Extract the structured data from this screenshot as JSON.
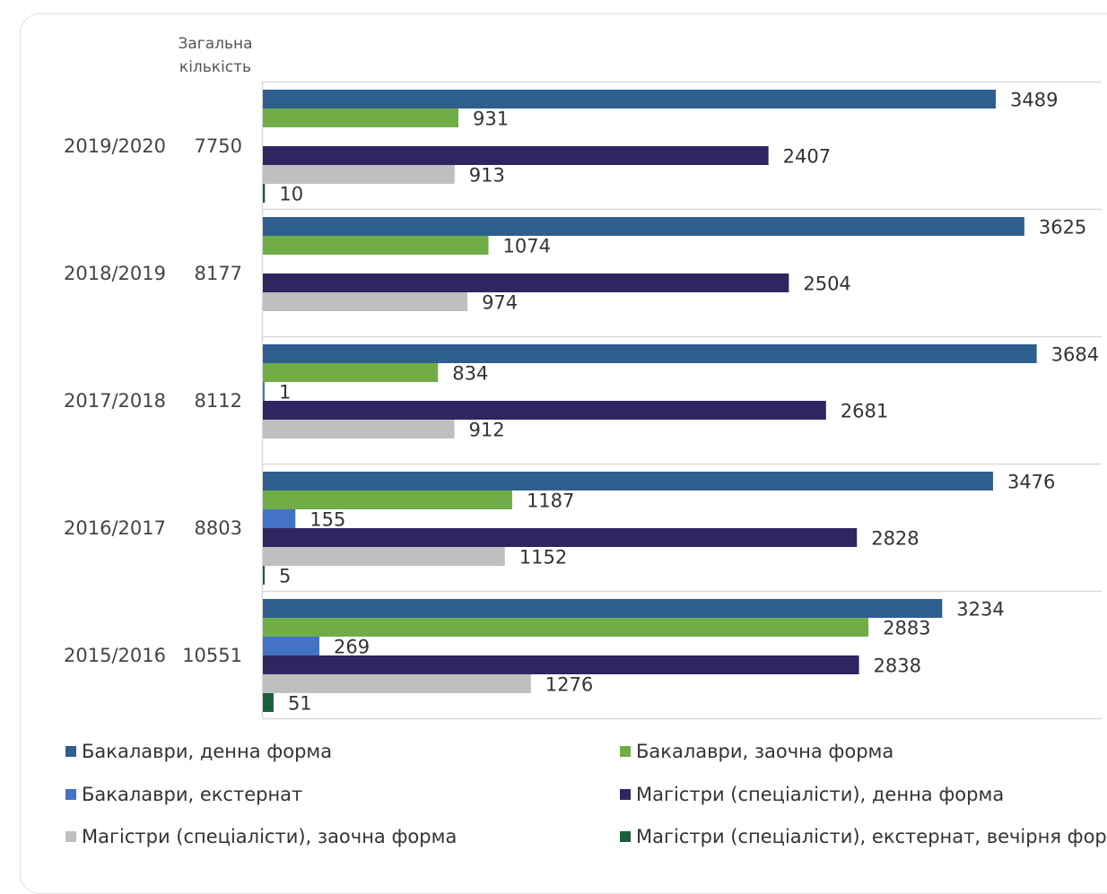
{
  "chart_data": {
    "type": "bar",
    "orientation": "horizontal",
    "total_header": "Загальна кількість",
    "total_header_lines": [
      "Загальна",
      "кількість"
    ],
    "categories": [
      "2019/2020",
      "2018/2019",
      "2017/2018",
      "2016/2017",
      "2015/2016"
    ],
    "totals": [
      "7750",
      "8177",
      "8112",
      "8803",
      "10551"
    ],
    "xlim": [
      0,
      4000
    ],
    "grid": "horizontal separators between year groups",
    "legend_position": "bottom",
    "series": [
      {
        "name": "Бакалаври, денна форма",
        "color": "#2e5f8f",
        "values": [
          3489,
          3625,
          3684,
          3476,
          3234
        ]
      },
      {
        "name": "Бакалаври, заочна форма",
        "color": "#70ad47",
        "values": [
          931,
          1074,
          834,
          1187,
          2883
        ]
      },
      {
        "name": "Бакалаври, екстернат",
        "color": "#4472c4",
        "values": [
          null,
          null,
          1,
          155,
          269
        ]
      },
      {
        "name": "Магістри (спеціалісти), денна форма",
        "color": "#2e2660",
        "values": [
          2407,
          2504,
          2681,
          2828,
          2838
        ]
      },
      {
        "name": "Магістри (спеціалісти), заочна форма",
        "color": "#bfbfbf",
        "values": [
          913,
          974,
          912,
          1152,
          1276
        ]
      },
      {
        "name": "Магістри (спеціалісти), екстернат, вечірня форма",
        "color": "#1b5e3b",
        "values": [
          10,
          null,
          null,
          5,
          51
        ]
      }
    ]
  }
}
